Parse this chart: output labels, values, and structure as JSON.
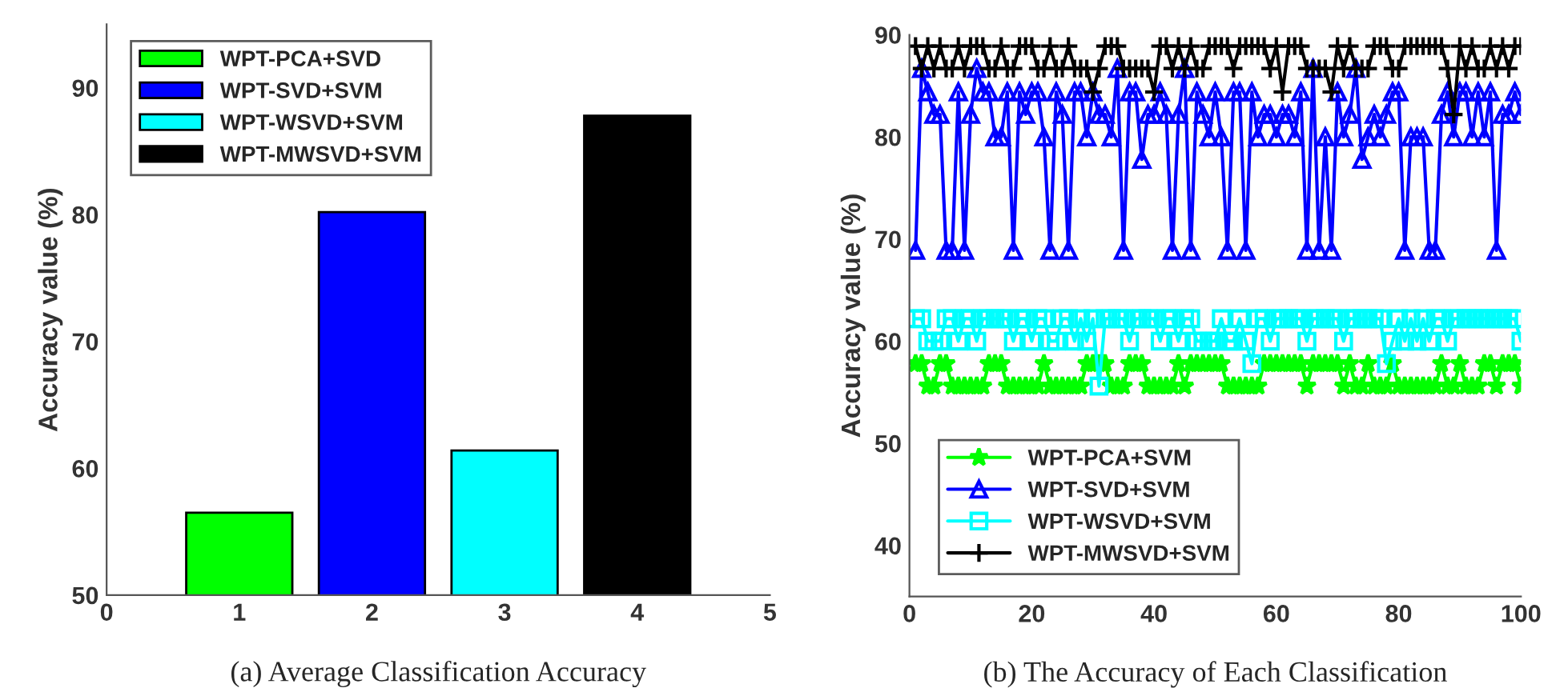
{
  "chart_data": [
    {
      "type": "bar",
      "xlabel": null,
      "ylabel": "Accuracy value (%)",
      "xlim": [
        0,
        5
      ],
      "xticks": [
        0,
        1,
        2,
        3,
        4,
        5
      ],
      "ylim": [
        50,
        95
      ],
      "yticks": [
        50,
        60,
        70,
        80,
        90
      ],
      "legend": "top left",
      "grid": false,
      "series": [
        {
          "name": "WPT-PCA+SVD",
          "color": "#00ff00",
          "x": [
            1
          ],
          "values": [
            56.5
          ]
        },
        {
          "name": "WPT-SVD+SVM",
          "color": "#0000ff",
          "x": [
            2
          ],
          "values": [
            80.2
          ]
        },
        {
          "name": "WPT-WSVD+SVM",
          "color": "#00ffff",
          "x": [
            3
          ],
          "values": [
            61.4
          ]
        },
        {
          "name": "WPT-MWSVD+SVM",
          "color": "#000000",
          "x": [
            4
          ],
          "values": [
            87.8
          ]
        }
      ],
      "annotations": [
        "(a) Average Classification Accuracy"
      ]
    },
    {
      "type": "line",
      "ylabel": "Accuracy value (%)",
      "xlim": [
        0,
        100
      ],
      "xticks": [
        0,
        20,
        40,
        60,
        80,
        100
      ],
      "ylim": [
        35,
        90
      ],
      "yticks": [
        40,
        50,
        60,
        70,
        80,
        90
      ],
      "legend": "bottom left",
      "grid": false,
      "x": [
        1,
        2,
        3,
        4,
        5,
        6,
        7,
        8,
        9,
        10,
        11,
        12,
        13,
        14,
        15,
        16,
        17,
        18,
        19,
        20,
        21,
        22,
        23,
        24,
        25,
        26,
        27,
        28,
        29,
        30,
        31,
        32,
        33,
        34,
        35,
        36,
        37,
        38,
        39,
        40,
        41,
        42,
        43,
        44,
        45,
        46,
        47,
        48,
        49,
        50,
        51,
        52,
        53,
        54,
        55,
        56,
        57,
        58,
        59,
        60,
        61,
        62,
        63,
        64,
        65,
        66,
        67,
        68,
        69,
        70,
        71,
        72,
        73,
        74,
        75,
        76,
        77,
        78,
        79,
        80,
        81,
        82,
        83,
        84,
        85,
        86,
        87,
        88,
        89,
        90,
        91,
        92,
        93,
        94,
        95,
        96,
        97,
        98,
        99,
        100
      ],
      "series": [
        {
          "name": "WPT-PCA+SVM",
          "color": "#00ff00",
          "marker": "star",
          "values": [
            57.8,
            57.8,
            55.6,
            55.6,
            57.8,
            57.8,
            55.6,
            55.6,
            55.6,
            55.6,
            55.6,
            55.6,
            57.8,
            57.8,
            57.8,
            55.6,
            55.6,
            55.6,
            55.6,
            55.6,
            55.6,
            57.8,
            55.6,
            55.6,
            55.6,
            55.6,
            55.6,
            55.6,
            57.8,
            57.8,
            57.8,
            57.8,
            55.6,
            55.6,
            55.6,
            57.8,
            57.8,
            57.8,
            55.6,
            55.6,
            55.6,
            55.6,
            55.6,
            57.8,
            55.6,
            57.8,
            57.8,
            57.8,
            57.8,
            57.8,
            57.8,
            55.6,
            55.6,
            55.6,
            55.6,
            55.6,
            55.6,
            57.8,
            57.8,
            57.8,
            57.8,
            57.8,
            57.8,
            57.8,
            55.6,
            57.8,
            57.8,
            57.8,
            57.8,
            57.8,
            55.6,
            57.8,
            55.6,
            55.6,
            57.8,
            55.6,
            55.6,
            55.6,
            57.8,
            55.6,
            55.6,
            55.6,
            55.6,
            55.6,
            55.6,
            55.6,
            57.8,
            55.6,
            55.6,
            57.8,
            55.6,
            55.6,
            55.6,
            57.8,
            57.8,
            55.6,
            57.8,
            57.8,
            57.8,
            55.6
          ]
        },
        {
          "name": "WPT-SVD+SVM",
          "color": "#0000ff",
          "marker": "triangle",
          "values": [
            68.9,
            86.7,
            84.4,
            82.2,
            82.2,
            68.9,
            68.9,
            84.4,
            68.9,
            82.2,
            86.7,
            84.4,
            84.4,
            80,
            80,
            84.4,
            68.9,
            84.4,
            82.2,
            84.4,
            84.4,
            80,
            68.9,
            84.4,
            82.2,
            68.9,
            84.4,
            84.4,
            80,
            84.4,
            82.2,
            82.2,
            80,
            86.7,
            68.9,
            84.4,
            84.4,
            77.8,
            82.2,
            82.2,
            84.4,
            82.2,
            68.9,
            82.2,
            86.7,
            68.9,
            84.4,
            82.2,
            80,
            84.4,
            80,
            68.9,
            84.4,
            84.4,
            68.9,
            84.4,
            80,
            82.2,
            82.2,
            80,
            82.2,
            82.2,
            80,
            84.4,
            68.9,
            86.7,
            68.9,
            80,
            68.9,
            84.4,
            80,
            82.2,
            86.7,
            77.8,
            80,
            82.2,
            80,
            82.2,
            84.4,
            84.4,
            68.9,
            80,
            80,
            80,
            68.9,
            68.9,
            82.2,
            84.4,
            80,
            84.4,
            84.4,
            80,
            84.4,
            80,
            84.4,
            68.9,
            82.2,
            82.2,
            84.4,
            82.2
          ]
        },
        {
          "name": "WPT-WSVD+SVM",
          "color": "#00ffff",
          "marker": "square",
          "values": [
            62.2,
            62.2,
            60,
            60,
            60,
            62.2,
            62.2,
            60,
            62.2,
            62.2,
            60,
            62.2,
            62.2,
            62.2,
            62.2,
            62.2,
            60,
            62.2,
            62.2,
            60,
            62.2,
            62.2,
            60,
            60,
            62.2,
            62.2,
            60,
            62.2,
            60,
            62.2,
            55.6,
            62.2,
            62.2,
            62.2,
            62.2,
            60,
            62.2,
            62.2,
            62.2,
            62.2,
            60,
            62.2,
            62.2,
            60,
            62.2,
            62.2,
            60,
            60,
            60,
            60,
            62.2,
            60,
            60,
            62.2,
            60,
            57.8,
            62.2,
            62.2,
            60,
            62.2,
            62.2,
            62.2,
            62.2,
            62.2,
            60,
            62.2,
            62.2,
            62.2,
            62.2,
            62.2,
            60,
            62.2,
            62.2,
            62.2,
            62.2,
            62.2,
            62.2,
            57.8,
            60,
            62.2,
            60,
            62.2,
            60,
            62.2,
            60,
            62.2,
            62.2,
            60,
            62.2,
            62.2,
            62.2,
            62.2,
            62.2,
            62.2,
            62.2,
            62.2,
            62.2,
            62.2,
            62.2,
            60
          ]
        },
        {
          "name": "WPT-MWSVD+SVM",
          "color": "#000000",
          "marker": "cross",
          "values": [
            88.9,
            86.7,
            88.9,
            86.7,
            88.9,
            86.7,
            86.7,
            88.9,
            86.7,
            88.9,
            88.9,
            88.9,
            86.7,
            86.7,
            88.9,
            86.7,
            86.7,
            88.9,
            88.9,
            88.9,
            86.7,
            86.7,
            88.9,
            86.7,
            86.7,
            88.9,
            86.7,
            86.7,
            86.7,
            84.4,
            86.7,
            88.9,
            88.9,
            88.9,
            86.7,
            86.7,
            86.7,
            86.7,
            86.7,
            84.4,
            88.9,
            88.9,
            86.7,
            88.9,
            86.7,
            88.9,
            86.7,
            86.7,
            88.9,
            88.9,
            88.9,
            88.9,
            86.7,
            88.9,
            88.9,
            88.9,
            88.9,
            88.9,
            86.7,
            88.9,
            84.4,
            88.9,
            88.9,
            88.9,
            86.7,
            86.7,
            86.7,
            86.7,
            84.4,
            88.9,
            86.7,
            88.9,
            86.7,
            86.7,
            86.7,
            88.9,
            88.9,
            88.9,
            86.7,
            86.7,
            88.9,
            88.9,
            88.9,
            88.9,
            88.9,
            88.9,
            88.9,
            86.7,
            82.2,
            88.9,
            86.7,
            88.9,
            86.7,
            86.7,
            88.9,
            86.7,
            88.9,
            86.7,
            88.9,
            88.9
          ]
        }
      ],
      "annotations": [
        "(b) The Accuracy of Each Classification"
      ]
    }
  ]
}
